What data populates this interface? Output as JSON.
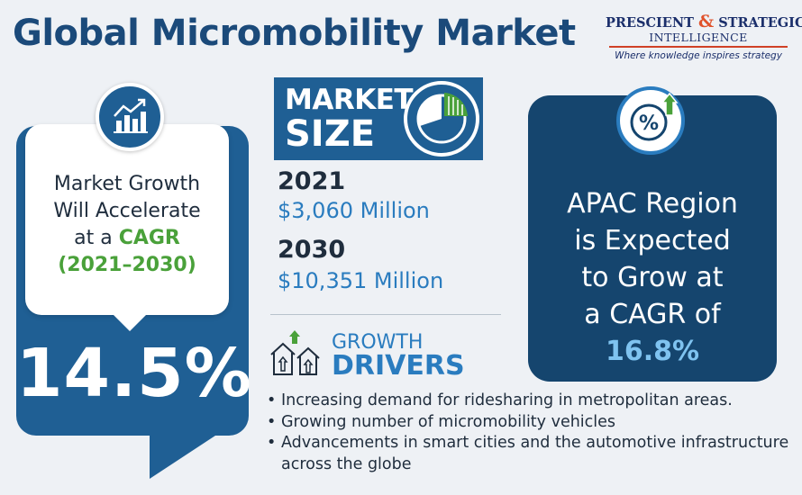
{
  "title": "Global Micromobility Market",
  "logo": {
    "name_part1": "PRESCIENT",
    "ampersand": "&",
    "name_part2": "STRATEGIC",
    "name_line2": "INTELLIGENCE",
    "tagline": "Where knowledge inspires strategy"
  },
  "growth": {
    "line1": "Market Growth",
    "line2": "Will Accelerate",
    "line3_prefix": "at a",
    "line3_highlight": "CAGR",
    "period": "(2021–2030)",
    "cagr_value": "14.5%",
    "icon": "bar-chart-growth-icon"
  },
  "market_size": {
    "label_line1": "MARKET",
    "label_line2": "SIZE",
    "icon": "pie-chart-icon",
    "entries": [
      {
        "year": "2021",
        "value": "$3,060 Million"
      },
      {
        "year": "2030",
        "value": "$10,351 Million"
      }
    ]
  },
  "drivers": {
    "title_line1": "GROWTH",
    "title_line2": "DRIVERS",
    "icon": "houses-up-arrow-icon",
    "items": [
      "Increasing demand for ridesharing in metropolitan areas.",
      "Growing number of micromobility vehicles",
      "Advancements in smart cities and the automotive infrastructure across the globe"
    ]
  },
  "apac": {
    "icon": "percent-growth-icon",
    "line1": "APAC Region",
    "line2": "is Expected",
    "line3": "to Grow at",
    "line4": "a CAGR of",
    "value": "16.8%"
  },
  "colors": {
    "primary_blue": "#1f5f94",
    "dark_navy": "#15456e",
    "accent_green": "#4aa13a",
    "light_blue_text": "#2a7cbf",
    "highlight_cyan": "#7fc3f0",
    "logo_red": "#e0522b"
  }
}
